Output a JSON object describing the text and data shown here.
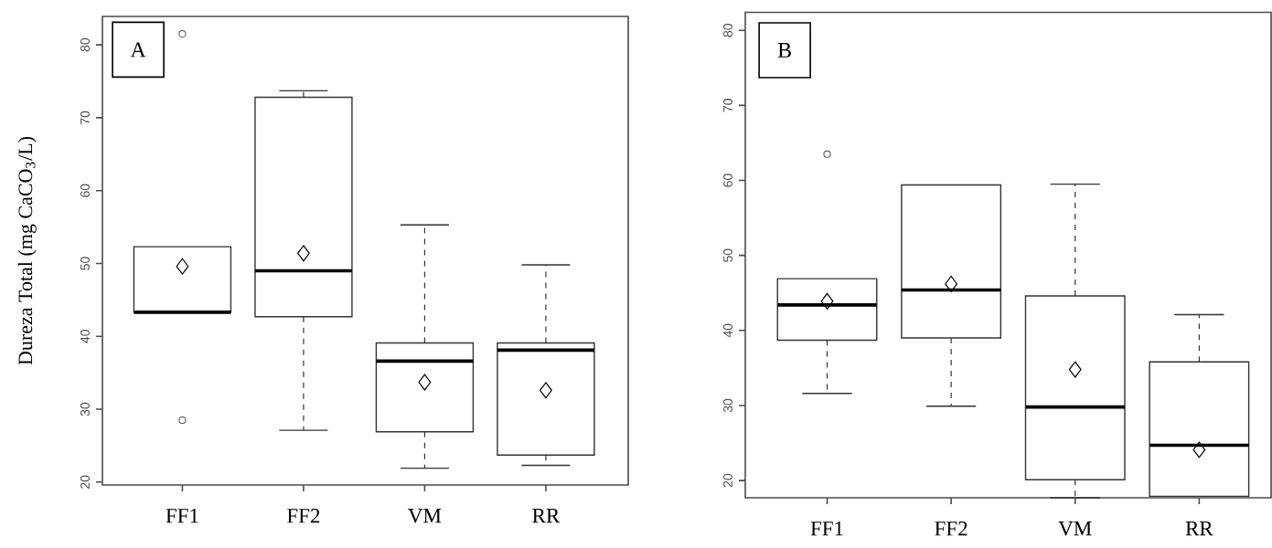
{
  "chart_data": [
    {
      "type": "box",
      "ylabel": "Dureza Total (mg CaCO$_{3}$/L)",
      "annotations": [
        "A"
      ],
      "categories": [
        "FF1",
        "FF2",
        "VM",
        "RR"
      ],
      "boxes": [
        {
          "low": 43.3,
          "q1": 43.3,
          "median": 43.3,
          "q3": 52.3,
          "high": 52.3,
          "mean": 49.6,
          "outliers": [
            81.5,
            28.5
          ]
        },
        {
          "low": 27.1,
          "q1": 42.7,
          "median": 49.0,
          "q3": 72.8,
          "high": 73.7,
          "mean": 51.4
        },
        {
          "low": 21.9,
          "q1": 26.9,
          "median": 36.6,
          "q3": 39.1,
          "high": 55.3,
          "mean": 33.7
        },
        {
          "low": 22.3,
          "q1": 23.7,
          "median": 38.1,
          "q3": 39.1,
          "high": 49.8,
          "mean": 32.6
        }
      ],
      "ylim": [
        19.6,
        83.9
      ],
      "yticks": [
        20,
        30,
        40,
        50,
        60,
        70,
        80
      ]
    },
    {
      "type": "box",
      "annotations": [
        "B"
      ],
      "categories": [
        "FF1",
        "FF2",
        "VM",
        "RR"
      ],
      "boxes": [
        {
          "low": 31.6,
          "q1": 38.7,
          "median": 43.4,
          "q3": 46.9,
          "high": 46.9,
          "mean": 43.9,
          "outliers": [
            63.5
          ]
        },
        {
          "low": 29.9,
          "q1": 39.0,
          "median": 45.4,
          "q3": 59.4,
          "high": 59.4,
          "mean": 46.2
        },
        {
          "low": 17.7,
          "q1": 20.1,
          "median": 29.8,
          "q3": 44.6,
          "high": 59.5,
          "mean": 34.8
        },
        {
          "low": 17.9,
          "q1": 17.9,
          "median": 24.7,
          "q3": 35.8,
          "high": 42.1,
          "mean": 24.1
        }
      ],
      "ylim": [
        17.7,
        82.4
      ],
      "yticks": [
        20,
        30,
        40,
        50,
        60,
        70,
        80
      ]
    }
  ]
}
